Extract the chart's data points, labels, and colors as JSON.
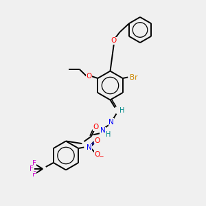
{
  "bg_color": "#f0f0f0",
  "bond_color": "#000000",
  "bond_width": 1.4,
  "atom_colors": {
    "O": "#ff0000",
    "N": "#0000ff",
    "Br": "#cc8800",
    "F": "#cc00cc",
    "H": "#008888"
  },
  "font_size": 7.5
}
